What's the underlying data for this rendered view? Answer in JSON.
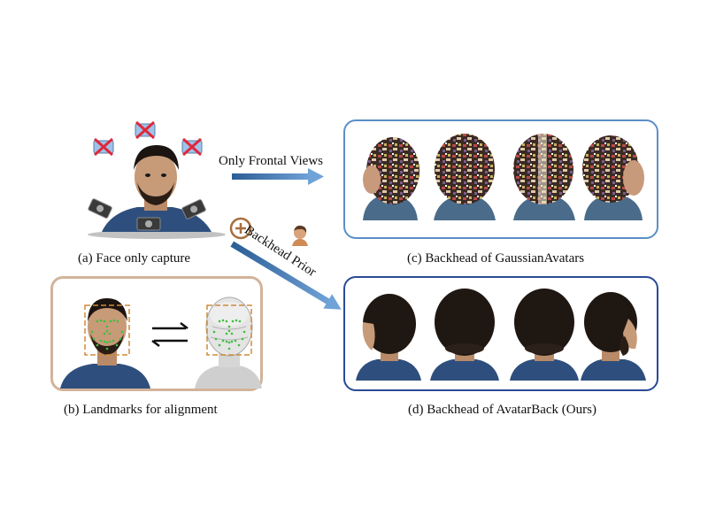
{
  "captions": {
    "a": "(a) Face only capture",
    "b": "(b) Landmarks for alignment",
    "c": "(c) Backhead of GaussianAvatars",
    "d": "(d) Backhead of AvatarBack (Ours)"
  },
  "arrows": {
    "frontal": "Only Frontal Views",
    "prior": "Backhead Prior",
    "plus": "+"
  },
  "colors": {
    "panel_c_border": "#5b8fc7",
    "panel_d_border": "#2a4a96",
    "panel_b_border": "#d2b49a",
    "arrow_blue": "#3f78b8",
    "landmark_box": "#d08a3a",
    "landmark_dot": "#3fbf3f",
    "camera_cross": "#e0283c"
  }
}
